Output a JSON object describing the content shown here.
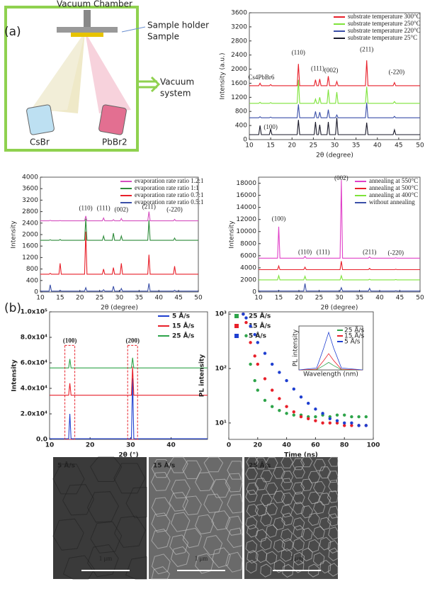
{
  "panel_labels": [
    "(a)",
    "(b)"
  ],
  "diagram": {
    "title": "Vacuum Chamber",
    "holder": "Sample holder",
    "sample": "Sample",
    "pump": [
      "Vacuum",
      "system"
    ],
    "sources": [
      "CsBr",
      "PbBr2"
    ]
  },
  "chart_data": [
    {
      "type": "line",
      "xlabel": "2θ (degree)",
      "ylabel": "Intensity (a.u.)",
      "legend": "upper right",
      "xlim": [
        10,
        50
      ],
      "xticks": [
        10,
        15,
        20,
        25,
        30,
        35,
        40,
        45,
        50
      ],
      "ylim": [
        0,
        3600
      ],
      "yticks": [
        0,
        400,
        800,
        1200,
        1600,
        2000,
        2400,
        2800,
        3200,
        3600
      ],
      "annotations": [
        "(110)",
        "(111)",
        "(002)",
        "(211)",
        "(-220)",
        "Cs4PbBr6",
        "(100)"
      ],
      "x": [
        10,
        12.2,
        12.5,
        12.8,
        14.7,
        15,
        15.3,
        21.2,
        21.5,
        21.8,
        25.2,
        25.5,
        25.8,
        26.2,
        26.5,
        26.8,
        28.2,
        28.5,
        28.8,
        30.2,
        30.5,
        30.8,
        37.2,
        37.5,
        37.8,
        43.7,
        44,
        44.3,
        50
      ],
      "series": [
        {
          "name": "substrate temperature 300°C",
          "color": "#e8202a",
          "values": [
            1530,
            1530,
            1600,
            1530,
            1530,
            1560,
            1530,
            1530,
            2150,
            1530,
            1530,
            1700,
            1530,
            1530,
            1720,
            1530,
            1530,
            1800,
            1530,
            1530,
            1650,
            1530,
            1530,
            2250,
            1530,
            1530,
            1620,
            1530,
            1530
          ]
        },
        {
          "name": "substrate temperature 250°C",
          "color": "#7ee33a",
          "values": [
            1030,
            1030,
            1060,
            1030,
            1030,
            1050,
            1030,
            1030,
            1700,
            1030,
            1030,
            1150,
            1030,
            1030,
            1200,
            1030,
            1030,
            1420,
            1030,
            1030,
            1350,
            1030,
            1030,
            1500,
            1030,
            1030,
            1080,
            1030,
            1030
          ]
        },
        {
          "name": "substrate temperature 220°C",
          "color": "#3a4fa8",
          "values": [
            620,
            620,
            650,
            620,
            620,
            640,
            620,
            620,
            1000,
            620,
            620,
            800,
            620,
            620,
            780,
            620,
            620,
            850,
            620,
            620,
            700,
            620,
            620,
            1050,
            620,
            620,
            660,
            620,
            620
          ]
        },
        {
          "name": "substrate temperature 25°C",
          "color": "#1a1a2a",
          "values": [
            140,
            140,
            400,
            140,
            140,
            300,
            140,
            140,
            560,
            140,
            140,
            500,
            140,
            140,
            420,
            140,
            140,
            500,
            140,
            140,
            620,
            140,
            140,
            480,
            140,
            140,
            280,
            140,
            140
          ]
        }
      ]
    },
    {
      "type": "line",
      "xlabel": "2θ (degree)",
      "ylabel": "Intensity",
      "legend": "upper right",
      "xlim": [
        10,
        50
      ],
      "xticks": [
        10,
        15,
        20,
        25,
        30,
        35,
        40,
        45,
        50
      ],
      "ylim": [
        0,
        4000
      ],
      "yticks": [
        0,
        400,
        800,
        1200,
        1600,
        2000,
        2400,
        2800,
        3200,
        3600,
        4000
      ],
      "annotations": [
        "(110)",
        "(111)",
        "(002)",
        "(211)",
        "(-220)"
      ],
      "x": [
        10,
        12.2,
        12.5,
        12.8,
        14.7,
        15,
        15.3,
        21.2,
        21.5,
        21.8,
        25.7,
        26,
        26.3,
        28.2,
        28.5,
        28.8,
        30.2,
        30.5,
        30.8,
        37.2,
        37.5,
        37.8,
        43.7,
        44,
        44.3,
        50
      ],
      "series": [
        {
          "name": "evaporation rate ratio 1.2:1",
          "color": "#d54fc0",
          "values": [
            2480,
            2480,
            2500,
            2480,
            2480,
            2490,
            2480,
            2480,
            2650,
            2480,
            2480,
            2580,
            2480,
            2480,
            2520,
            2480,
            2480,
            2560,
            2480,
            2480,
            2800,
            2480,
            2480,
            2530,
            2480,
            2480
          ]
        },
        {
          "name": "evaporation rate ratio 1:1",
          "color": "#2e8b3a",
          "values": [
            1800,
            1800,
            1820,
            1800,
            1800,
            1830,
            1800,
            1800,
            2550,
            1800,
            1800,
            1950,
            1800,
            1800,
            2050,
            1800,
            1800,
            1950,
            1800,
            1800,
            2500,
            1800,
            1800,
            1880,
            1800,
            1800
          ]
        },
        {
          "name": "evaporation rate ratio 0.7:1",
          "color": "#e8202a",
          "values": [
            620,
            620,
            650,
            620,
            620,
            1000,
            620,
            620,
            2100,
            620,
            620,
            800,
            620,
            620,
            850,
            620,
            620,
            1000,
            620,
            620,
            1300,
            620,
            620,
            900,
            620,
            620
          ]
        },
        {
          "name": "evaporation rate ratio 0.5:1",
          "color": "#3a4fa8",
          "values": [
            30,
            30,
            250,
            30,
            30,
            60,
            30,
            30,
            150,
            30,
            30,
            80,
            30,
            30,
            200,
            30,
            30,
            120,
            30,
            30,
            300,
            30,
            30,
            60,
            30,
            30
          ]
        }
      ]
    },
    {
      "type": "line",
      "xlabel": "2θ (degree)",
      "ylabel": "Intensity",
      "legend": "upper right",
      "xlim": [
        10,
        50
      ],
      "xticks": [
        10,
        15,
        20,
        25,
        30,
        35,
        40,
        45,
        50
      ],
      "ylim": [
        0,
        19000
      ],
      "yticks": [
        0,
        2000,
        4000,
        6000,
        8000,
        10000,
        12000,
        14000,
        16000,
        18000
      ],
      "annotations": [
        "(100)",
        "(110)",
        "(111)",
        "(002)",
        "(211)",
        "(-220)"
      ],
      "x": [
        10,
        14.7,
        15,
        15.3,
        21.2,
        21.5,
        21.8,
        30.2,
        30.5,
        30.8,
        37.2,
        37.5,
        37.8,
        43.7,
        44,
        44.3,
        50
      ],
      "series": [
        {
          "name": "annealing at 550°C",
          "color": "#e040c8",
          "values": [
            5600,
            5600,
            10800,
            5600,
            5600,
            5900,
            5600,
            5600,
            18500,
            5600,
            5600,
            5800,
            5600,
            5600,
            5650,
            5600,
            5600
          ]
        },
        {
          "name": "annealing at 500°C",
          "color": "#e8202a",
          "values": [
            3700,
            3700,
            4300,
            3700,
            3700,
            4100,
            3700,
            3700,
            5100,
            3700,
            3700,
            3900,
            3700,
            3700,
            3750,
            3700,
            3700
          ]
        },
        {
          "name": "annealing at 400°C",
          "color": "#7ee33a",
          "values": [
            2000,
            2000,
            2700,
            2000,
            2000,
            2600,
            2000,
            2000,
            2700,
            2000,
            2000,
            2100,
            2000,
            2000,
            2050,
            2000,
            2000
          ]
        },
        {
          "name": "without annealing",
          "color": "#3a4fa8",
          "values": [
            150,
            150,
            250,
            150,
            150,
            1400,
            150,
            150,
            700,
            150,
            150,
            600,
            150,
            150,
            200,
            150,
            150
          ]
        }
      ]
    },
    {
      "type": "line",
      "xlabel": "2θ (°)",
      "ylabel": "Intensity",
      "legend": "upper right",
      "xlim": [
        10,
        49
      ],
      "xticks": [
        10,
        20,
        30,
        40
      ],
      "ylim": [
        0,
        100000
      ],
      "yticks": [
        {
          "value": 0,
          "label": "0.0"
        },
        {
          "value": 20000,
          "label": "2.0x10⁴"
        },
        {
          "value": 40000,
          "label": "4.0x10⁴"
        },
        {
          "value": 60000,
          "label": "6.0x10⁴"
        },
        {
          "value": 80000,
          "label": "8.0x10⁴"
        },
        {
          "value": 100000,
          "label": "1.0x10⁵"
        }
      ],
      "annotations": [
        "(100)",
        "(200)"
      ],
      "x": [
        10,
        14.7,
        15,
        15.3,
        30.2,
        30.5,
        30.8,
        49
      ],
      "series": [
        {
          "name": "5 Å/s",
          "color": "#1f3fd0",
          "values": [
            500,
            500,
            20000,
            500,
            500,
            48000,
            500,
            500
          ]
        },
        {
          "name": "15 Å/s",
          "color": "#e8202a",
          "values": [
            34600,
            34600,
            44000,
            34600,
            34600,
            57000,
            34600,
            34600
          ]
        },
        {
          "name": "25 Å/s",
          "color": "#2ea44a",
          "values": [
            56000,
            56000,
            63000,
            56000,
            56000,
            64000,
            56000,
            56000
          ]
        }
      ]
    },
    {
      "type": "scatter",
      "xlabel": "Time (ns)",
      "ylabel": "PL intensity",
      "legend": "upper left",
      "yscale": "log",
      "xlim": [
        0,
        100
      ],
      "xticks": [
        0,
        20,
        40,
        60,
        80,
        100
      ],
      "ylim": [
        5,
        1100
      ],
      "yticks": [
        {
          "value": 10,
          "label": "10¹"
        },
        {
          "value": 100,
          "label": "10²"
        },
        {
          "value": 1000,
          "label": "10³"
        }
      ],
      "x": [
        10,
        12,
        15,
        18,
        20,
        25,
        30,
        35,
        40,
        45,
        50,
        55,
        60,
        65,
        70,
        75,
        80,
        85,
        90,
        95
      ],
      "series": [
        {
          "name": "25 Å/s",
          "color": "#2ea44a",
          "values": [
            1000,
            400,
            120,
            60,
            40,
            26,
            20,
            17,
            15,
            14,
            14,
            13,
            13,
            14,
            13,
            14,
            14,
            13,
            13,
            13
          ]
        },
        {
          "name": "15 Å/s",
          "color": "#e8202a",
          "values": [
            1000,
            700,
            300,
            170,
            120,
            65,
            40,
            28,
            20,
            16,
            13,
            12,
            11,
            10,
            10,
            10,
            9,
            9,
            9,
            9
          ]
        },
        {
          "name": "5 Å/s",
          "color": "#1f3fd0",
          "values": [
            1000,
            850,
            600,
            420,
            300,
            190,
            120,
            85,
            60,
            42,
            30,
            23,
            18,
            15,
            12,
            11,
            10,
            10,
            9,
            9
          ]
        }
      ]
    },
    {
      "type": "line",
      "xlabel": "Wavelength (nm)",
      "ylabel": "PL intensity",
      "legend": "upper right",
      "xlim": [
        470,
        560
      ],
      "ylim": [
        0,
        7
      ],
      "x": [
        470,
        495,
        505,
        512,
        519,
        530,
        560
      ],
      "series": [
        {
          "name": "25 Å/s",
          "color": "#2ea44a",
          "values": [
            0,
            0.05,
            0.7,
            1.2,
            0.7,
            0.05,
            0
          ]
        },
        {
          "name": "15 Å/s",
          "color": "#e8202a",
          "values": [
            0,
            0.1,
            1.5,
            2.6,
            1.5,
            0.1,
            0
          ]
        },
        {
          "name": "5 Å/s",
          "color": "#1f3fd0",
          "values": [
            0,
            0.3,
            3.5,
            6,
            3.5,
            0.3,
            0
          ]
        }
      ]
    }
  ],
  "sem": [
    {
      "label": "5 Å/s",
      "scale": "1 μm"
    },
    {
      "label": "15 Å/s",
      "scale": "1 μm"
    },
    {
      "label": "25 Å/s",
      "scale": "1 μm"
    }
  ]
}
